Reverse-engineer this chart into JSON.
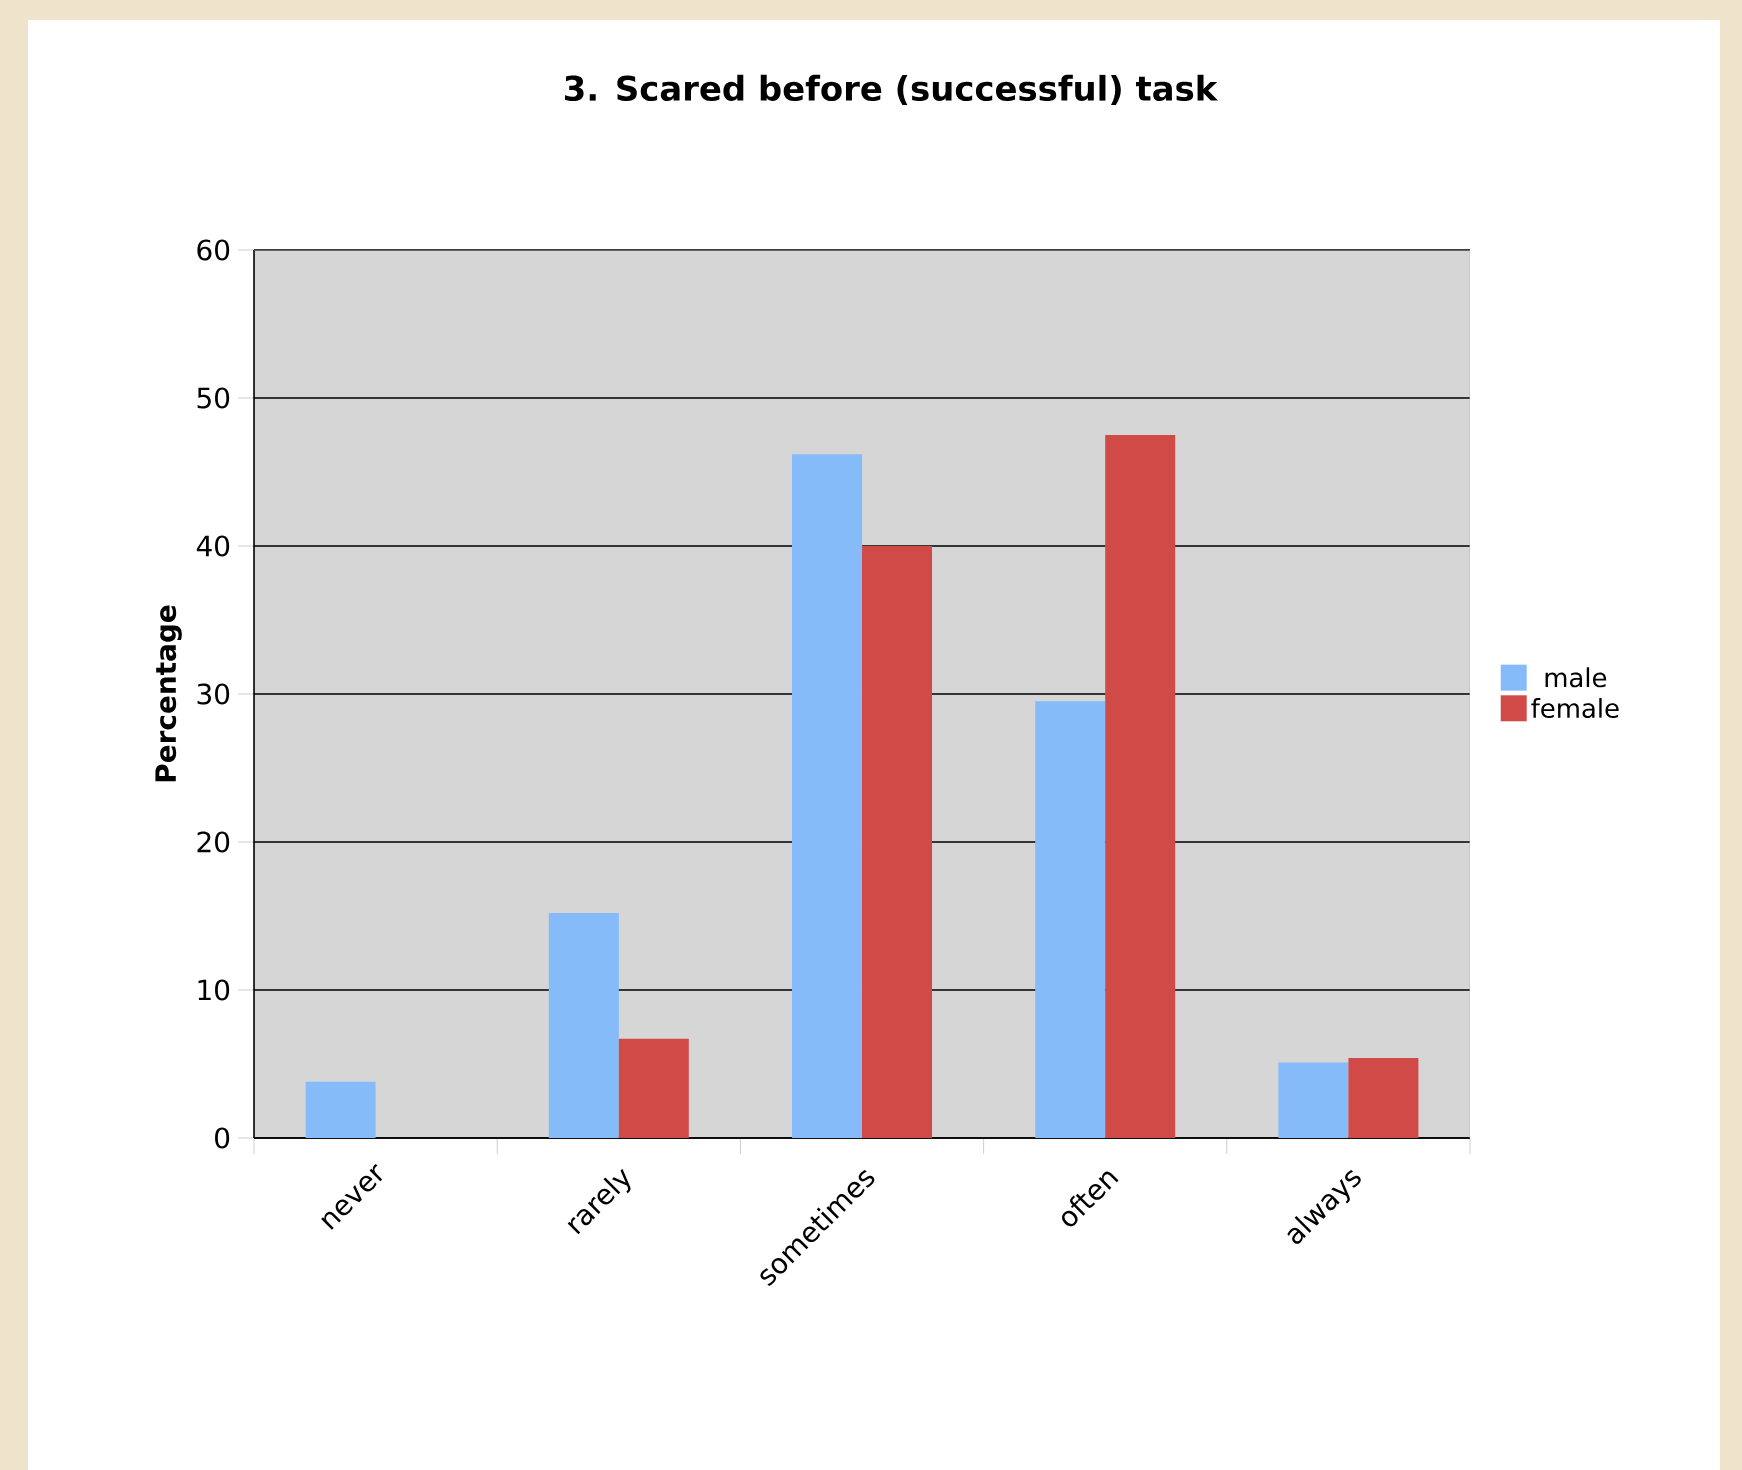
{
  "chart_data": {
    "type": "bar",
    "title": "3. Scared before (successful) task",
    "ylabel": "Percentage",
    "categories": [
      "never",
      "rarely",
      "sometimes",
      "often",
      "always"
    ],
    "series": [
      {
        "name": "male",
        "color": "#86bbfa",
        "values": [
          3.8,
          15.2,
          46.2,
          29.5,
          5.1
        ]
      },
      {
        "name": "female",
        "color": "#d04b48",
        "values": [
          0,
          6.7,
          40.0,
          47.5,
          5.4
        ]
      }
    ],
    "ylim": [
      0,
      60
    ],
    "yticks": [
      0,
      10,
      20,
      30,
      40,
      50,
      60
    ],
    "grid": "y",
    "legend": "right"
  }
}
